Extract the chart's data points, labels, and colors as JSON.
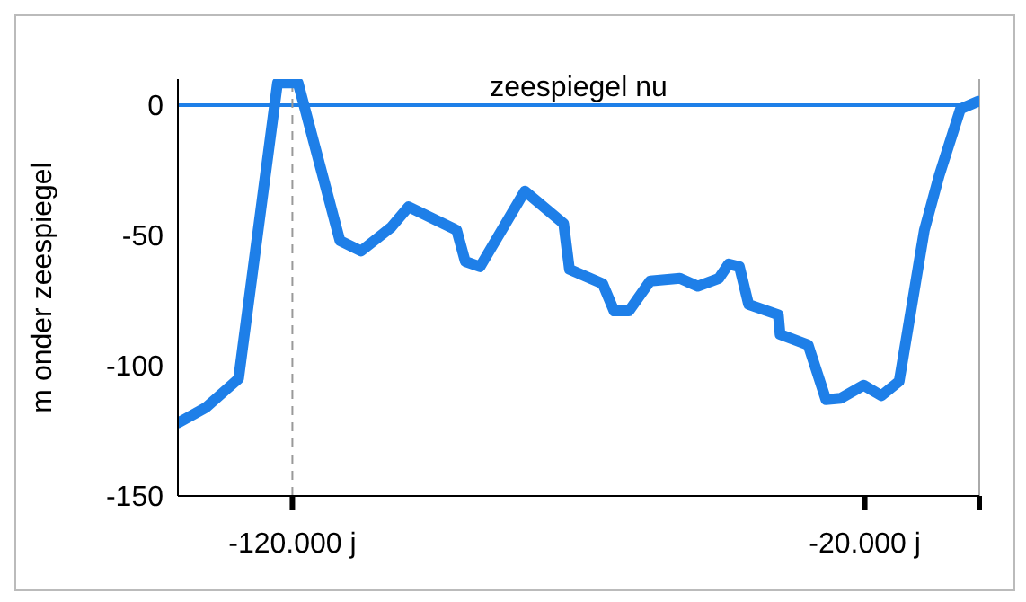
{
  "chart_data": {
    "type": "line",
    "ylabel": "m onder zeespiegel",
    "x": [
      -140000,
      -135100,
      -129400,
      -122600,
      -119000,
      -111700,
      -108000,
      -102800,
      -99700,
      -91300,
      -89800,
      -87200,
      -79400,
      -72600,
      -71600,
      -65800,
      -63800,
      -61200,
      -57500,
      -52300,
      -49200,
      -45500,
      -43800,
      -41900,
      -40300,
      -35100,
      -34800,
      -29900,
      -26800,
      -24200,
      -20200,
      -17100,
      -14000,
      -9600,
      -7000,
      -3300,
      -200
    ],
    "series": [
      {
        "color": "#1e7fe8",
        "values": [
          -122,
          -116,
          -105,
          8.5,
          8.5,
          -52,
          -56,
          -47,
          -39,
          -48,
          -60,
          -62,
          -33,
          -45.5,
          -63,
          -68.5,
          -79,
          -79,
          -67.5,
          -66.5,
          -69.5,
          -66.5,
          -61,
          -62,
          -76.5,
          -80.5,
          -88,
          -92,
          -113,
          -112.5,
          -107.5,
          -111.5,
          -106,
          -48,
          -27,
          -1.5,
          1.5
        ]
      }
    ],
    "xlim": [
      -140000,
      0
    ],
    "xticks": [
      {
        "value": -120000,
        "label": "-120.000 j"
      },
      {
        "value": -20000,
        "label": "-20.000 j"
      },
      {
        "value": 0,
        "label": null
      }
    ],
    "ylim": [
      -150,
      10
    ],
    "yticks": [
      -150,
      -100,
      -50,
      0
    ],
    "ref_lines": [
      {
        "axis": "y",
        "value": 0,
        "label": "zeespiegel nu",
        "color": "#1e7fe8",
        "line_style": "solid"
      },
      {
        "axis": "x",
        "value": -120000,
        "label": null,
        "color": "#999999",
        "line_style": "dashed"
      }
    ],
    "grid": false,
    "legend": false,
    "marker": "none",
    "line_style": "solid"
  }
}
